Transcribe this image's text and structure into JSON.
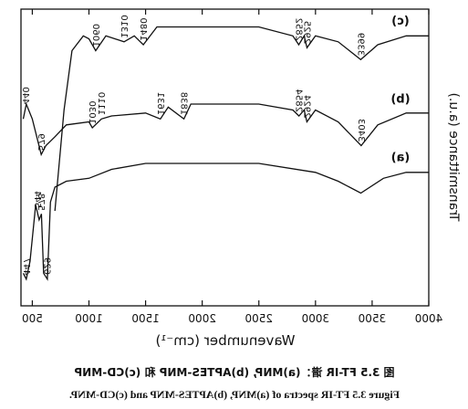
{
  "chart_data": {
    "type": "line",
    "x_label": "Wavenumber (cm⁻¹)",
    "y_label": "Transmittance (a.u.)",
    "caption_cn": "图 3.5 FT-IR 谱：(a)MNP, (b)APTES-MNP 和 (c)CD-MNP",
    "caption_en": "Figure 3.5 FT-IR spectra of (a)MNP, (b)APTES-MNP and (c)CD-MNP.",
    "xlim": [
      4000,
      400
    ],
    "ylim": [
      0,
      100
    ],
    "xticks": [
      4000,
      3500,
      3000,
      2500,
      2000,
      1500,
      1000,
      500
    ],
    "series": [
      {
        "name": "(a)",
        "color": "#111111",
        "x": [
          420,
          447,
          480,
          530,
          560,
          580,
          600,
          633,
          660,
          700,
          800,
          1000,
          1200,
          1500,
          2000,
          2500,
          3000,
          3200,
          3400,
          3600,
          3800,
          4000
        ],
        "values": [
          11,
          9,
          15,
          34,
          29,
          31,
          11,
          9,
          35,
          40,
          42,
          43,
          46,
          48,
          48,
          48,
          45,
          42,
          38,
          43,
          45,
          45
        ],
        "peaks": [
          "447",
          "544",
          "578",
          "629"
        ]
      },
      {
        "name": "(b)",
        "color": "#111111",
        "x": [
          420,
          447,
          500,
          579,
          620,
          700,
          800,
          1000,
          1030,
          1110,
          1200,
          1500,
          1631,
          1700,
          1838,
          1900,
          2500,
          2800,
          2854,
          2900,
          2924,
          3000,
          3200,
          3403,
          3550,
          3800,
          4000
        ],
        "values": [
          63,
          68,
          63,
          51,
          54,
          57,
          61,
          62,
          60,
          63,
          64,
          65,
          63,
          67,
          63,
          68,
          68,
          66,
          64,
          66,
          62,
          66,
          62,
          54,
          61,
          65,
          65
        ],
        "peaks": [
          "440",
          "579",
          "1030",
          "1110",
          "1631",
          "1838",
          "2854",
          "2924",
          "3403"
        ]
      },
      {
        "name": "(c)",
        "color": "#111111",
        "x": [
          700,
          780,
          850,
          950,
          1000,
          1060,
          1150,
          1310,
          1400,
          1480,
          1600,
          2000,
          2500,
          2800,
          2852,
          2900,
          2925,
          3000,
          3200,
          3399,
          3550,
          3800,
          4000
        ],
        "values": [
          32,
          66,
          86,
          91,
          90,
          86,
          91,
          89,
          91,
          88,
          94,
          94,
          94,
          91,
          88,
          91,
          87,
          91,
          89,
          83,
          88,
          91,
          91
        ],
        "peaks": [
          "1060",
          "1310",
          "1480",
          "2852",
          "2925",
          "3399"
        ]
      }
    ]
  }
}
